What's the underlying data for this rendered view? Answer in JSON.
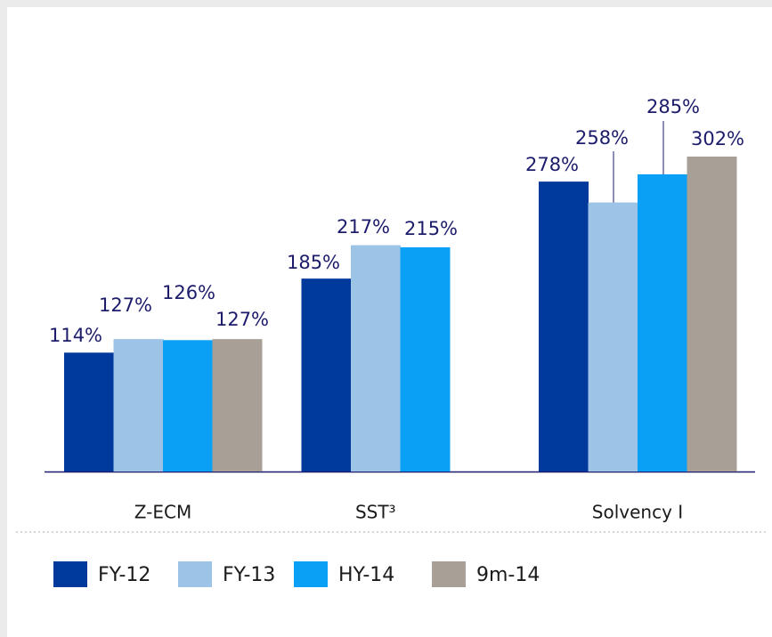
{
  "chart_data": {
    "type": "bar",
    "categories": [
      "Z-ECM",
      "SST³",
      "Solvency I"
    ],
    "series": [
      {
        "name": "FY-12",
        "color": "#00399c",
        "values": [
          114,
          185,
          278
        ],
        "value_labels": [
          "114%",
          "185%",
          "278%"
        ]
      },
      {
        "name": "FY-13",
        "color": "#9dc3e6",
        "values": [
          127,
          217,
          258
        ],
        "value_labels": [
          "127%",
          "217%",
          "258%"
        ]
      },
      {
        "name": "HY-14",
        "color": "#0aa0f5",
        "values": [
          126,
          215,
          285
        ],
        "value_labels": [
          "126%",
          "215%",
          "285%"
        ]
      },
      {
        "name": "9m-14",
        "color": "#a8a096",
        "values": [
          127,
          null,
          302
        ],
        "value_labels": [
          "127%",
          null,
          "302%"
        ]
      }
    ],
    "legend": "bottom"
  }
}
